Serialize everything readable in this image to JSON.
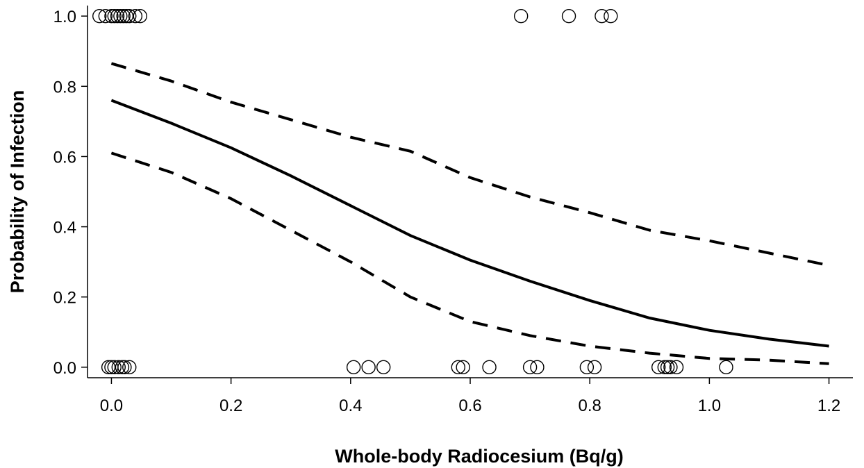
{
  "chart_data": {
    "type": "scatter",
    "title": "",
    "xlabel": "Whole-body Radiocesium (Bq/g)",
    "ylabel": "Probability of Infection",
    "xlim": [
      -0.04,
      1.24
    ],
    "ylim": [
      -0.03,
      1.03
    ],
    "grid": false,
    "legend": "none",
    "x_ticks": [
      "0.0",
      "0.2",
      "0.4",
      "0.6",
      "0.8",
      "1.0",
      "1.2"
    ],
    "y_ticks": [
      "0.0",
      "0.2",
      "0.4",
      "0.6",
      "0.8",
      "1.0"
    ],
    "points": [
      {
        "x": -0.02,
        "y": 1
      },
      {
        "x": -0.01,
        "y": 1
      },
      {
        "x": 0.0,
        "y": 1
      },
      {
        "x": 0.005,
        "y": 1
      },
      {
        "x": 0.01,
        "y": 1
      },
      {
        "x": 0.015,
        "y": 1
      },
      {
        "x": 0.02,
        "y": 1
      },
      {
        "x": 0.025,
        "y": 1
      },
      {
        "x": 0.03,
        "y": 1
      },
      {
        "x": 0.04,
        "y": 1
      },
      {
        "x": 0.048,
        "y": 1
      },
      {
        "x": 0.685,
        "y": 1
      },
      {
        "x": 0.765,
        "y": 1
      },
      {
        "x": 0.82,
        "y": 1
      },
      {
        "x": 0.835,
        "y": 1
      },
      {
        "x": -0.005,
        "y": 0
      },
      {
        "x": 0.0,
        "y": 0
      },
      {
        "x": 0.005,
        "y": 0
      },
      {
        "x": 0.012,
        "y": 0
      },
      {
        "x": 0.018,
        "y": 0
      },
      {
        "x": 0.022,
        "y": 0
      },
      {
        "x": 0.03,
        "y": 0
      },
      {
        "x": 0.405,
        "y": 0
      },
      {
        "x": 0.43,
        "y": 0
      },
      {
        "x": 0.455,
        "y": 0
      },
      {
        "x": 0.58,
        "y": 0
      },
      {
        "x": 0.588,
        "y": 0
      },
      {
        "x": 0.632,
        "y": 0
      },
      {
        "x": 0.7,
        "y": 0
      },
      {
        "x": 0.712,
        "y": 0
      },
      {
        "x": 0.795,
        "y": 0
      },
      {
        "x": 0.808,
        "y": 0
      },
      {
        "x": 0.915,
        "y": 0
      },
      {
        "x": 0.925,
        "y": 0
      },
      {
        "x": 0.93,
        "y": 0
      },
      {
        "x": 0.935,
        "y": 0
      },
      {
        "x": 0.945,
        "y": 0
      },
      {
        "x": 1.028,
        "y": 0
      }
    ],
    "series": [
      {
        "style": "solid",
        "x": [
          0.0,
          0.1,
          0.2,
          0.3,
          0.4,
          0.5,
          0.6,
          0.7,
          0.8,
          0.9,
          1.0,
          1.1,
          1.2
        ],
        "y": [
          0.76,
          0.695,
          0.625,
          0.545,
          0.46,
          0.375,
          0.305,
          0.245,
          0.19,
          0.14,
          0.105,
          0.08,
          0.06
        ]
      },
      {
        "style": "dashed",
        "x": [
          0.0,
          0.1,
          0.2,
          0.3,
          0.4,
          0.5,
          0.6,
          0.7,
          0.8,
          0.9,
          1.0,
          1.1,
          1.2
        ],
        "y": [
          0.865,
          0.815,
          0.755,
          0.705,
          0.655,
          0.615,
          0.54,
          0.485,
          0.44,
          0.39,
          0.36,
          0.325,
          0.29
        ]
      },
      {
        "style": "dashed",
        "x": [
          0.0,
          0.1,
          0.2,
          0.3,
          0.4,
          0.5,
          0.6,
          0.7,
          0.8,
          0.9,
          1.0,
          1.1,
          1.2
        ],
        "y": [
          0.61,
          0.555,
          0.48,
          0.39,
          0.3,
          0.2,
          0.13,
          0.09,
          0.06,
          0.04,
          0.025,
          0.02,
          0.01
        ]
      }
    ]
  }
}
